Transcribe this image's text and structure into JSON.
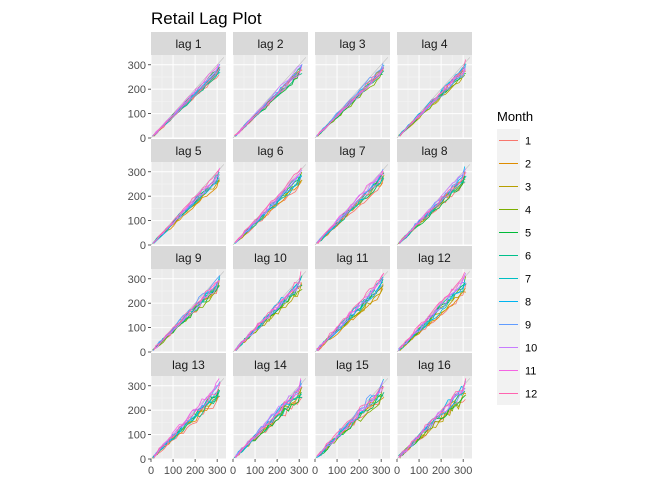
{
  "chart_data": {
    "type": "line",
    "title": "Retail Lag Plot",
    "xlabel": "",
    "ylabel": "",
    "xlim": [
      0,
      340
    ],
    "ylim": [
      0,
      340
    ],
    "x_ticks": [
      0,
      100,
      200,
      300
    ],
    "y_ticks": [
      0,
      100,
      200,
      300
    ],
    "x_tick_labels": [
      "0",
      "100",
      "200",
      "300"
    ],
    "y_tick_labels": [
      "0",
      "100",
      "200",
      "300"
    ],
    "grid": true,
    "legend_position": "right",
    "legend": {
      "title": "Month",
      "entries": [
        {
          "label": "1",
          "color": "#F8766D"
        },
        {
          "label": "2",
          "color": "#DE8C00"
        },
        {
          "label": "3",
          "color": "#B79F00"
        },
        {
          "label": "4",
          "color": "#7CAE00"
        },
        {
          "label": "5",
          "color": "#00BA38"
        },
        {
          "label": "6",
          "color": "#00C08B"
        },
        {
          "label": "7",
          "color": "#00BFC4"
        },
        {
          "label": "8",
          "color": "#00B4F0"
        },
        {
          "label": "9",
          "color": "#619CFF"
        },
        {
          "label": "10",
          "color": "#C77CFF"
        },
        {
          "label": "11",
          "color": "#F564E3"
        },
        {
          "label": "12",
          "color": "#FF64B0"
        }
      ]
    },
    "panels": [
      {
        "label": "lag 1"
      },
      {
        "label": "lag 2"
      },
      {
        "label": "lag 3"
      },
      {
        "label": "lag 4"
      },
      {
        "label": "lag 5"
      },
      {
        "label": "lag 6"
      },
      {
        "label": "lag 7"
      },
      {
        "label": "lag 8"
      },
      {
        "label": "lag 9"
      },
      {
        "label": "lag 10"
      },
      {
        "label": "lag 11"
      },
      {
        "label": "lag 12"
      },
      {
        "label": "lag 13"
      },
      {
        "label": "lag 14"
      },
      {
        "label": "lag 15"
      },
      {
        "label": "lag 16"
      }
    ],
    "series_x_path": [
      10,
      25,
      40,
      55,
      70,
      85,
      100,
      115,
      130,
      145,
      160,
      175,
      190,
      205,
      220,
      235,
      250,
      265,
      280,
      295,
      310
    ]
  }
}
